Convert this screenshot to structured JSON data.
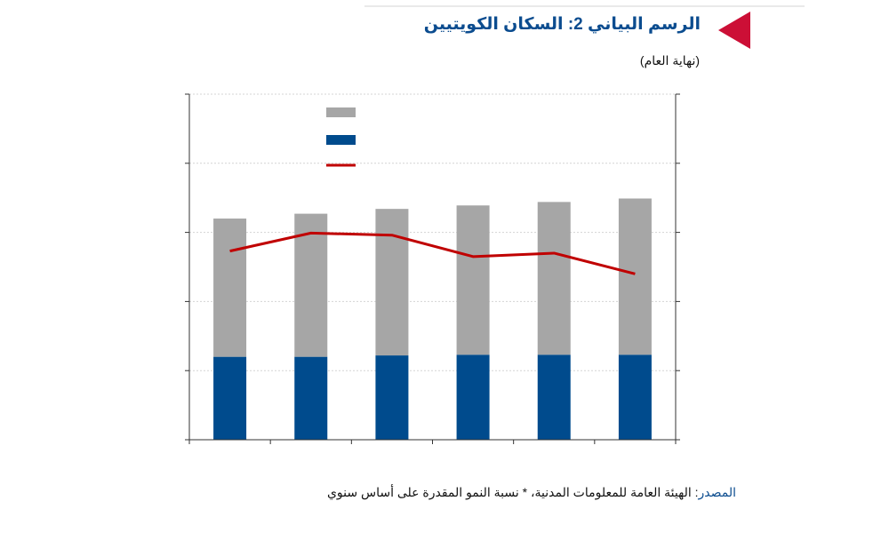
{
  "header": {
    "title": "الرسم البياني 2: السكان الكويتيين",
    "subtitle": "(نهاية العام)"
  },
  "footer": {
    "source_label": "المصدر",
    "source_separator": ":",
    "source_text": " الهيئة العامة للمعلومات المدنية، * نسبة النمو المقدرة على أساس سنوي"
  },
  "colors": {
    "accent_red": "#cc0f36",
    "title_blue": "#0b4c8f",
    "bar_gray": "#a6a6a6",
    "bar_blue": "#004b8d",
    "line_red": "#c00000"
  },
  "chart_data": {
    "type": "bar",
    "stacked": true,
    "categories": [
      "",
      "",
      "",
      "",
      "",
      ""
    ],
    "ylim": [
      0,
      5
    ],
    "y2lim": [
      0,
      5
    ],
    "grid": true,
    "legend_position": "top-left",
    "series": [
      {
        "kind": "bar",
        "color": "#004b8d",
        "values": [
          1.2,
          1.2,
          1.22,
          1.23,
          1.23,
          1.23
        ]
      },
      {
        "kind": "bar",
        "color": "#a6a6a6",
        "values": [
          2.0,
          2.07,
          2.12,
          2.16,
          2.21,
          2.26
        ]
      },
      {
        "kind": "line",
        "color": "#c00000",
        "axis": "right",
        "values": [
          2.73,
          2.99,
          2.96,
          2.65,
          2.7,
          2.4
        ]
      }
    ]
  }
}
